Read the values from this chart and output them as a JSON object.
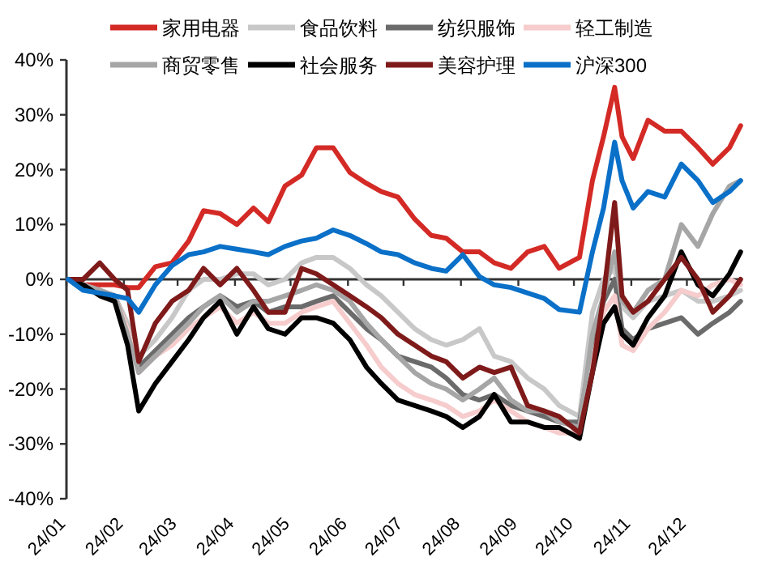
{
  "chart_data": {
    "type": "line",
    "x": [
      "--01-02",
      "--01-10",
      "--01-19",
      "--01-27",
      "--02-03",
      "--02-09",
      "--02-18",
      "--02-27",
      "--03-07",
      "--03-15",
      "--03-24",
      "--04-02",
      "--04-11",
      "--04-19",
      "--04-28",
      "--05-07",
      "--05-15",
      "--05-24",
      "--06-02",
      "--06-11",
      "--06-19",
      "--06-28",
      "--07-07",
      "--07-16",
      "--07-24",
      "--08-02",
      "--08-11",
      "--08-19",
      "--08-28",
      "--09-06",
      "--09-15",
      "--09-23",
      "--10-04",
      "--10-11",
      "--10-17",
      "--10-23",
      "--10-27",
      "--11-02",
      "--11-10",
      "--11-19",
      "--11-28",
      "--12-07",
      "--12-15",
      "--12-24",
      "--12-30"
    ],
    "xlim": [
      "--01-01",
      "--12-31"
    ],
    "xticks": [
      {
        "value": "--01-01",
        "label": "24/01"
      },
      {
        "value": "--02-01",
        "label": "24/02"
      },
      {
        "value": "--03-01",
        "label": "24/03"
      },
      {
        "value": "--04-01",
        "label": "24/04"
      },
      {
        "value": "--05-01",
        "label": "24/05"
      },
      {
        "value": "--06-01",
        "label": "24/06"
      },
      {
        "value": "--07-01",
        "label": "24/07"
      },
      {
        "value": "--08-01",
        "label": "24/08"
      },
      {
        "value": "--09-01",
        "label": "24/09"
      },
      {
        "value": "--10-01",
        "label": "24/10"
      },
      {
        "value": "--11-01",
        "label": "24/11"
      },
      {
        "value": "--12-01",
        "label": "24/12"
      }
    ],
    "ylim": [
      -40,
      40
    ],
    "yticks": [
      {
        "value": -40,
        "label": "-40%"
      },
      {
        "value": -30,
        "label": "-30%"
      },
      {
        "value": -20,
        "label": "-20%"
      },
      {
        "value": -10,
        "label": "-10%"
      },
      {
        "value": 0,
        "label": "0%"
      },
      {
        "value": 10,
        "label": "10%"
      },
      {
        "value": 20,
        "label": "20%"
      },
      {
        "value": 30,
        "label": "30%"
      },
      {
        "value": 40,
        "label": "40%"
      }
    ],
    "ref_lines": [
      {
        "axis": "y",
        "value": 0,
        "color": "#333333",
        "line_style": "solid"
      }
    ],
    "grid": false,
    "legend": "top",
    "marker": "none",
    "line_style": "solid",
    "series": [
      {
        "name": "家用电器",
        "color": "#d42a26",
        "values": [
          0,
          -1,
          -1,
          -1,
          -1.5,
          -1.5,
          2.3,
          3,
          7,
          12.5,
          12,
          10,
          13,
          10.5,
          17,
          19,
          24,
          24,
          19.5,
          17.5,
          16,
          15,
          11,
          8,
          7.5,
          5,
          5,
          3,
          2,
          5,
          6,
          2,
          4,
          18,
          26,
          35,
          26,
          22,
          29,
          27,
          27,
          24,
          21,
          24,
          28
        ]
      },
      {
        "name": "食品饮料",
        "color": "#c8c8c8",
        "values": [
          0,
          -1,
          -2,
          -3,
          -8,
          -14,
          -11,
          -7,
          -2,
          0,
          0,
          1,
          1,
          -1,
          0,
          3,
          4,
          4,
          2,
          -1,
          -3,
          -6,
          -9,
          -11,
          -12,
          -11,
          -9,
          -14,
          -15,
          -18,
          -20,
          -23,
          -25,
          -6,
          0,
          2,
          -5,
          -7,
          -4,
          -3,
          -2,
          -4,
          -4,
          -3,
          -2
        ]
      },
      {
        "name": "纺织服饰",
        "color": "#6b6b6b",
        "values": [
          0,
          -1,
          -2,
          -3,
          -9,
          -16,
          -13,
          -10,
          -7,
          -5,
          -3,
          -5,
          -4,
          -6,
          -5,
          -5,
          -4,
          -3,
          -6,
          -9,
          -11,
          -14,
          -15,
          -16,
          -18,
          -21,
          -22,
          -21,
          -23,
          -24,
          -25,
          -26,
          -26,
          -12,
          -4,
          0,
          -9,
          -11,
          -9,
          -8,
          -7,
          -10,
          -8,
          -6,
          -4
        ]
      },
      {
        "name": "轻工制造",
        "color": "#f6cccc",
        "values": [
          0,
          -1,
          -2,
          -3,
          -9,
          -17,
          -14,
          -12,
          -9,
          -7,
          -5,
          -8,
          -6,
          -8,
          -8,
          -6,
          -5,
          -4,
          -8,
          -12,
          -16,
          -19,
          -21,
          -22,
          -23,
          -25,
          -24,
          -22,
          -24,
          -26,
          -27,
          -28,
          -28,
          -15,
          -6,
          -3,
          -12,
          -13,
          -9,
          -6,
          -2,
          -3,
          -1,
          0,
          -1
        ]
      },
      {
        "name": "商贸零售",
        "color": "#a6a6a6",
        "values": [
          0,
          -1,
          -2,
          -3,
          -10,
          -17,
          -14,
          -11,
          -8,
          -5,
          -3,
          -6,
          -4,
          -4,
          -3,
          -2,
          -1,
          -2,
          -4,
          -8,
          -11,
          -14,
          -17,
          -19,
          -20,
          -22,
          -20,
          -18,
          -22,
          -24,
          -24,
          -26,
          -27,
          -10,
          -3,
          5,
          -4,
          -6,
          -2,
          0,
          10,
          6,
          12,
          17,
          18
        ]
      },
      {
        "name": "社会服务",
        "color": "#000000",
        "values": [
          0,
          -1,
          -3,
          -4,
          -12,
          -24,
          -19,
          -15,
          -11,
          -7,
          -4,
          -10,
          -5,
          -9,
          -10,
          -7,
          -7,
          -8,
          -11,
          -16,
          -19,
          -22,
          -23,
          -24,
          -25,
          -27,
          -25,
          -21,
          -26,
          -26,
          -27,
          -27,
          -29,
          -17,
          -8,
          -5,
          -10,
          -12,
          -7,
          -3,
          5,
          -1,
          -3,
          1,
          5
        ]
      },
      {
        "name": "美容护理",
        "color": "#7f1a1a",
        "values": [
          0,
          0,
          3,
          0,
          -2,
          -15,
          -8,
          -4,
          -2,
          2,
          -1,
          2,
          -2,
          -6,
          -6,
          2,
          1,
          -1,
          -3,
          -5,
          -7,
          -10,
          -12,
          -14,
          -15,
          -18,
          -16,
          -17,
          -16,
          -23,
          -24,
          -25,
          -28,
          -17,
          -3,
          14,
          -3,
          -6,
          -4,
          0,
          4,
          0,
          -6,
          -3,
          0
        ]
      },
      {
        "name": "沪深300",
        "color": "#0a70c8",
        "values": [
          0,
          -2,
          -2.5,
          -3,
          -3.5,
          -6,
          -1,
          2.5,
          4.5,
          5,
          6,
          5.5,
          5,
          4.5,
          6,
          7,
          7.5,
          9,
          8,
          6.5,
          5,
          4.5,
          3,
          2,
          1.5,
          4.5,
          0.5,
          -1,
          -1.5,
          -2.5,
          -3.5,
          -5.5,
          -6,
          5,
          13,
          25,
          18,
          13,
          16,
          15,
          21,
          18,
          14,
          16,
          18
        ]
      }
    ]
  }
}
